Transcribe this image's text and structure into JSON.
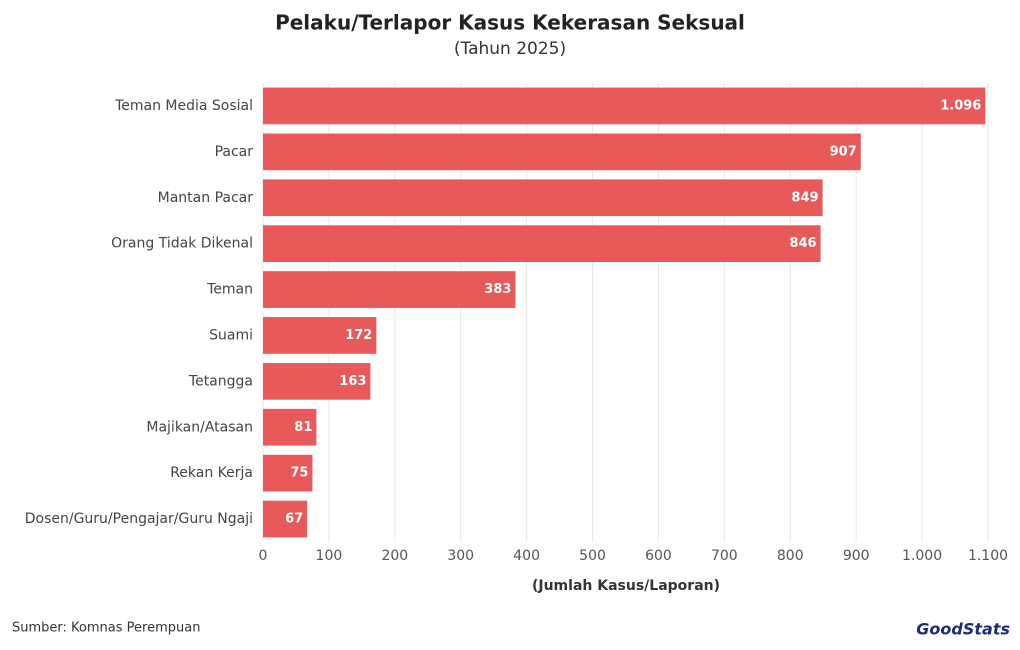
{
  "chart_data": {
    "type": "bar",
    "orientation": "horizontal",
    "title": "Pelaku/Terlapor Kasus Kekerasan Seksual",
    "subtitle": "(Tahun 2025)",
    "x_label": "(Jumlah Kasus/Laporan)",
    "source": "Sumber: Komnas Perempuan",
    "logo": "GoodStats",
    "categories": [
      "Teman Media Sosial",
      "Pacar",
      "Mantan Pacar",
      "Orang Tidak Dikenal",
      "Teman",
      "Suami",
      "Tetangga",
      "Majikan/Atasan",
      "Rekan Kerja",
      "Dosen/Guru/Pengajar/Guru Ngaji"
    ],
    "values": [
      1096,
      907,
      849,
      846,
      383,
      172,
      163,
      81,
      75,
      67
    ],
    "value_labels": [
      "1.096",
      "907",
      "849",
      "846",
      "383",
      "172",
      "163",
      "81",
      "75",
      "67"
    ],
    "color": "#e85a5a",
    "xlim": [
      0,
      1100
    ],
    "xticks": [
      0,
      100,
      200,
      300,
      400,
      500,
      600,
      700,
      800,
      900,
      {
        "value": 1000,
        "label": "1.000"
      },
      {
        "value": 1100,
        "label": "1.100"
      }
    ],
    "grid": true
  }
}
